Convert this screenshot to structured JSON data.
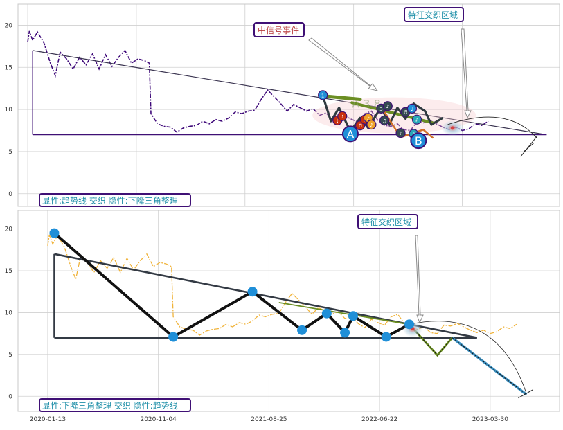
{
  "colors": {
    "top_price": "#3f0a7a",
    "bottom_price": "#f0b33a",
    "trend_green": "#6b8e23",
    "grid": "#d0d0d0",
    "frame": "#9a9a9a",
    "annot_text_red": "#b83a3a",
    "annot_text_teal": "#1e8fa8",
    "marker_blue": "#1f8fd8",
    "marker_red": "#c8300e",
    "marker_orange": "#f0a22a",
    "marker_dark": "#354a52",
    "dash_blue": "#3a8fc0"
  },
  "chart_data": [
    {
      "type": "line",
      "panel": "top",
      "series": [
        {
          "values": [
            [
              0,
              18.0
            ],
            [
              1,
              19.3
            ],
            [
              3,
              18.2
            ],
            [
              6,
              19.2
            ],
            [
              10,
              17.9
            ],
            [
              14,
              15.5
            ],
            [
              17,
              14.0
            ],
            [
              20,
              16.8
            ],
            [
              24,
              16.0
            ],
            [
              28,
              14.8
            ],
            [
              32,
              16.2
            ],
            [
              36,
              15.3
            ],
            [
              40,
              16.6
            ],
            [
              44,
              14.8
            ],
            [
              48,
              16.5
            ],
            [
              52,
              15.1
            ],
            [
              56,
              16.2
            ],
            [
              60,
              17.0
            ],
            [
              64,
              15.5
            ],
            [
              68,
              16.0
            ],
            [
              72,
              15.8
            ],
            [
              75,
              15.5
            ],
            [
              76,
              9.5
            ],
            [
              80,
              8.3
            ],
            [
              84,
              8.0
            ],
            [
              88,
              7.9
            ],
            [
              92,
              7.3
            ],
            [
              96,
              7.8
            ],
            [
              100,
              8.0
            ],
            [
              104,
              8.1
            ],
            [
              108,
              8.6
            ],
            [
              112,
              8.3
            ],
            [
              116,
              8.8
            ],
            [
              120,
              8.6
            ],
            [
              124,
              9.0
            ],
            [
              128,
              9.7
            ],
            [
              132,
              9.5
            ],
            [
              136,
              9.8
            ],
            [
              140,
              9.9
            ],
            [
              144,
              11.2
            ],
            [
              148,
              12.3
            ],
            [
              152,
              11.5
            ],
            [
              156,
              10.7
            ],
            [
              160,
              9.8
            ],
            [
              164,
              10.6
            ],
            [
              168,
              10.2
            ],
            [
              172,
              9.8
            ],
            [
              176,
              10.1
            ],
            [
              180,
              9.3
            ],
            [
              184,
              9.6
            ],
            [
              188,
              8.7
            ],
            [
              192,
              8.2
            ],
            [
              196,
              9.2
            ],
            [
              200,
              8.8
            ],
            [
              204,
              8.5
            ],
            [
              208,
              9.5
            ],
            [
              212,
              9.8
            ],
            [
              216,
              8.7
            ],
            [
              220,
              8.1
            ],
            [
              224,
              8.0
            ],
            [
              228,
              8.3
            ],
            [
              232,
              7.6
            ],
            [
              236,
              7.5
            ],
            [
              240,
              8.5
            ],
            [
              244,
              8.4
            ],
            [
              248,
              8.7
            ],
            [
              252,
              8.3
            ],
            [
              256,
              7.9
            ],
            [
              260,
              7.6
            ],
            [
              264,
              7.9
            ],
            [
              268,
              7.5
            ],
            [
              272,
              7.7
            ],
            [
              276,
              8.3
            ],
            [
              280,
              8.1
            ],
            [
              284,
              8.6
            ]
          ]
        }
      ],
      "trend_lines": {
        "descending": [
          [
            3,
            17.0
          ],
          [
            320,
            7.0
          ]
        ],
        "base": [
          [
            3,
            7.0
          ],
          [
            320,
            7.0
          ]
        ],
        "vertical": [
          [
            3,
            7.0
          ],
          [
            3,
            17.0
          ]
        ]
      },
      "x_ticks": [],
      "y_ticks": [
        0,
        5,
        10,
        15,
        20
      ],
      "ylim": [
        -1.5,
        22.5
      ],
      "xlim": [
        -6,
        328
      ],
      "grid": true,
      "annotations": [
        "中信号事件",
        "特征交织区域"
      ],
      "labels": {
        "A": "A",
        "B": "B",
        "faint": "A 3 8"
      },
      "caption": "显性:趋势线 交织 隐性:下降三角整理"
    },
    {
      "type": "line",
      "panel": "bottom",
      "series": [
        {
          "values": [
            [
              0,
              18.0
            ],
            [
              1,
              19.3
            ],
            [
              3,
              18.2
            ],
            [
              6,
              19.2
            ],
            [
              10,
              17.9
            ],
            [
              14,
              15.5
            ],
            [
              17,
              14.0
            ],
            [
              20,
              16.8
            ],
            [
              24,
              16.0
            ],
            [
              28,
              14.8
            ],
            [
              32,
              16.2
            ],
            [
              36,
              15.3
            ],
            [
              40,
              16.6
            ],
            [
              44,
              14.8
            ],
            [
              48,
              16.5
            ],
            [
              52,
              15.1
            ],
            [
              56,
              16.2
            ],
            [
              60,
              17.0
            ],
            [
              64,
              15.5
            ],
            [
              68,
              16.0
            ],
            [
              72,
              15.8
            ],
            [
              75,
              15.5
            ],
            [
              76,
              9.5
            ],
            [
              80,
              8.3
            ],
            [
              84,
              8.0
            ],
            [
              88,
              7.9
            ],
            [
              92,
              7.3
            ],
            [
              96,
              7.8
            ],
            [
              100,
              8.0
            ],
            [
              104,
              8.1
            ],
            [
              108,
              8.6
            ],
            [
              112,
              8.3
            ],
            [
              116,
              8.8
            ],
            [
              120,
              8.6
            ],
            [
              124,
              9.0
            ],
            [
              128,
              9.7
            ],
            [
              132,
              9.5
            ],
            [
              136,
              9.8
            ],
            [
              140,
              9.9
            ],
            [
              144,
              11.2
            ],
            [
              148,
              12.3
            ],
            [
              152,
              11.5
            ],
            [
              156,
              10.7
            ],
            [
              160,
              9.8
            ],
            [
              164,
              10.6
            ],
            [
              168,
              10.2
            ],
            [
              172,
              9.8
            ],
            [
              176,
              10.1
            ],
            [
              180,
              9.3
            ],
            [
              184,
              9.6
            ],
            [
              188,
              8.7
            ],
            [
              192,
              8.2
            ],
            [
              196,
              9.2
            ],
            [
              200,
              8.8
            ],
            [
              204,
              8.5
            ],
            [
              208,
              9.5
            ],
            [
              212,
              9.8
            ],
            [
              216,
              8.7
            ],
            [
              220,
              8.1
            ],
            [
              224,
              8.0
            ],
            [
              228,
              8.3
            ],
            [
              232,
              7.6
            ],
            [
              236,
              7.5
            ],
            [
              240,
              8.5
            ],
            [
              244,
              8.4
            ],
            [
              248,
              8.7
            ],
            [
              252,
              8.3
            ],
            [
              256,
              7.9
            ],
            [
              260,
              7.6
            ],
            [
              264,
              7.9
            ],
            [
              268,
              7.5
            ],
            [
              272,
              7.7
            ],
            [
              276,
              8.3
            ],
            [
              280,
              8.1
            ],
            [
              284,
              8.6
            ]
          ]
        }
      ],
      "zigzag": [
        [
          4,
          19.5
        ],
        [
          76,
          7.1
        ],
        [
          124,
          12.5
        ],
        [
          154,
          7.9
        ],
        [
          169,
          9.9
        ],
        [
          180,
          7.6
        ],
        [
          185,
          9.6
        ],
        [
          205,
          7.1
        ],
        [
          219,
          8.6
        ]
      ],
      "trend_lines": {
        "descending": [
          [
            4,
            17.0
          ],
          [
            260,
            7.0
          ]
        ],
        "base": [
          [
            4,
            7.0
          ],
          [
            260,
            7.0
          ]
        ],
        "vertical": [
          [
            4,
            7.0
          ],
          [
            4,
            17.0
          ]
        ]
      },
      "projection_green": [
        [
          219,
          8.6
        ],
        [
          236,
          4.9
        ],
        [
          245,
          7.0
        ]
      ],
      "projection_blue": [
        [
          245,
          7.0
        ],
        [
          290,
          0.2
        ]
      ],
      "x_ticks": [
        {
          "x": 0,
          "label": "2020-01-13"
        },
        {
          "x": 67,
          "label": "2020-11-04"
        },
        {
          "x": 134,
          "label": "2021-08-25"
        },
        {
          "x": 201,
          "label": "2022-06-22"
        },
        {
          "x": 268,
          "label": "2023-03-30"
        }
      ],
      "y_ticks": [
        0,
        5,
        10,
        15,
        20
      ],
      "ylim": [
        -1.8,
        22.2
      ],
      "xlim": [
        -18,
        310
      ],
      "grid": true,
      "annotations": [
        "特征交织区域"
      ],
      "caption": "显性:下降三角整理 交织 隐性:趋势线"
    }
  ]
}
